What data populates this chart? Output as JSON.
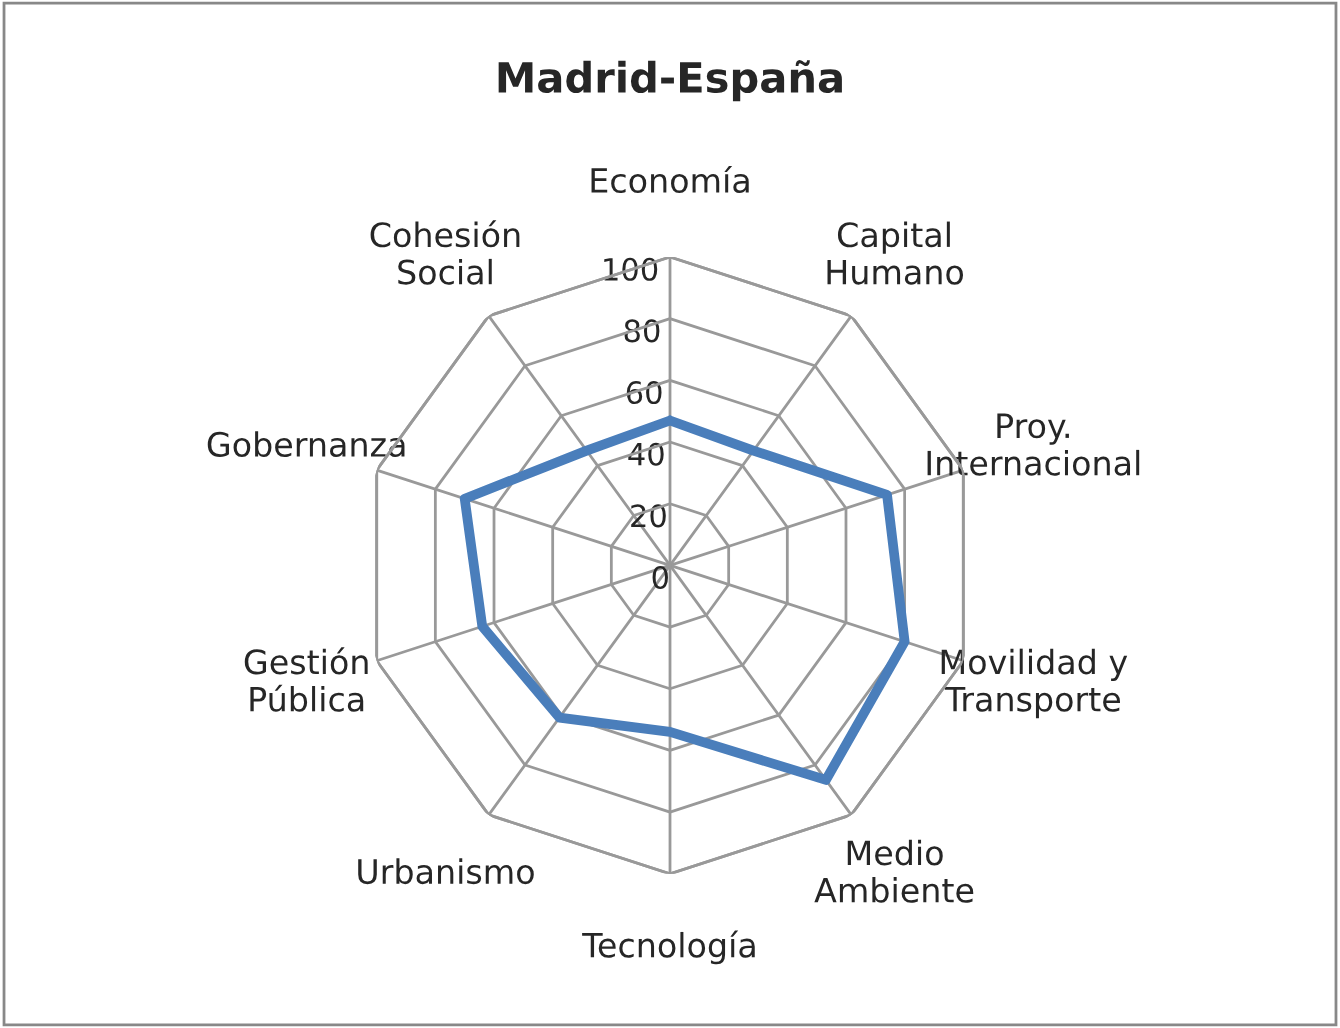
{
  "chart_data": {
    "type": "radar",
    "title": "Madrid-España",
    "categories": [
      "Economía",
      "Capital\nHumano",
      "Proy.\nInternacional",
      "Movilidad y\nTransporte",
      "Medio\nAmbiente",
      "Tecnología",
      "Urbanismo",
      "Gestión\nPública",
      "Gobernanza",
      "Cohesión\nSocial"
    ],
    "series": [
      {
        "color": "#4a7ebb",
        "values": [
          47,
          46,
          74,
          80,
          86,
          54,
          61,
          64,
          70,
          46
        ]
      }
    ],
    "ylim": [
      0,
      100
    ],
    "yticks": [
      0,
      20,
      40,
      60,
      80,
      100
    ],
    "grid": true,
    "legend": false
  }
}
